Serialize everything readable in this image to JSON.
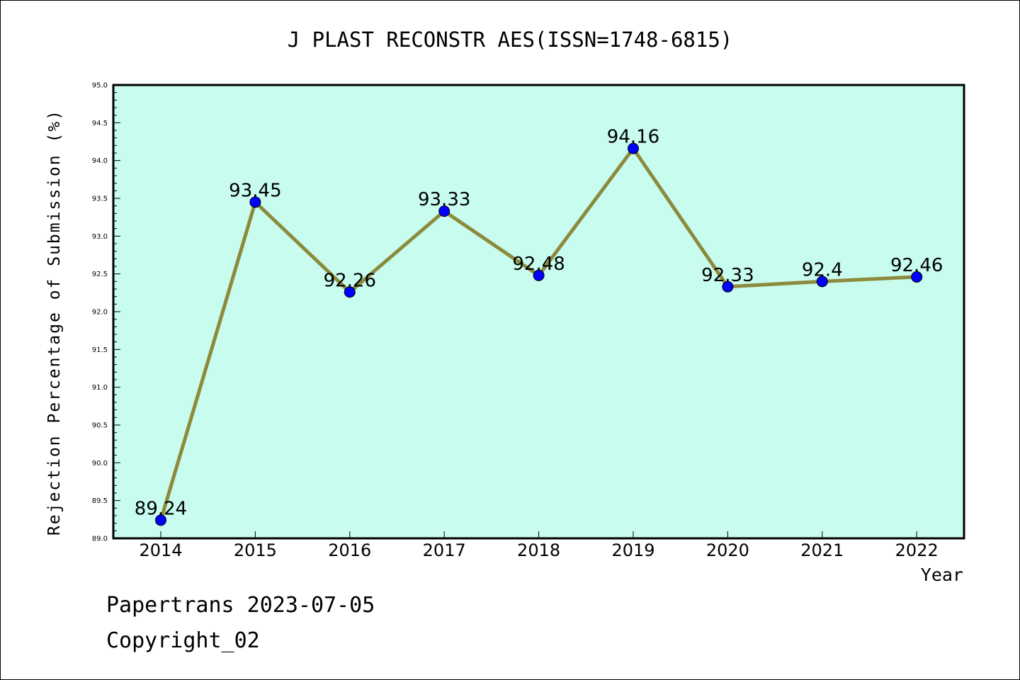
{
  "chart_data": {
    "type": "line",
    "title": "J PLAST RECONSTR AES(ISSN=1748-6815)",
    "xlabel": "Year",
    "ylabel": "Rejection Percentage of Submission (%)",
    "categories": [
      "2014",
      "2015",
      "2016",
      "2017",
      "2018",
      "2019",
      "2020",
      "2021",
      "2022"
    ],
    "series": [
      {
        "values": [
          89.24,
          93.45,
          92.26,
          93.33,
          92.48,
          94.16,
          92.33,
          92.4,
          92.46
        ],
        "labels": [
          "89.24",
          "93.45",
          "92.26",
          "93.33",
          "92.48",
          "94.16",
          "92.33",
          "92.4",
          "92.46"
        ]
      }
    ],
    "ylim": [
      89.0,
      95.0
    ],
    "yticks": [
      "89.0",
      "89.5",
      "90.0",
      "90.5",
      "91.0",
      "91.5",
      "92.0",
      "92.5",
      "93.0",
      "93.5",
      "94.0",
      "94.5",
      "95.0"
    ],
    "grid": false,
    "legend": "none",
    "colors": {
      "plot_background": "#c8fcee",
      "line": "#8c8a3c",
      "marker": "#0000ff"
    }
  },
  "footer": {
    "line1": "Papertrans 2023-07-05",
    "line2": "Copyright_02"
  }
}
